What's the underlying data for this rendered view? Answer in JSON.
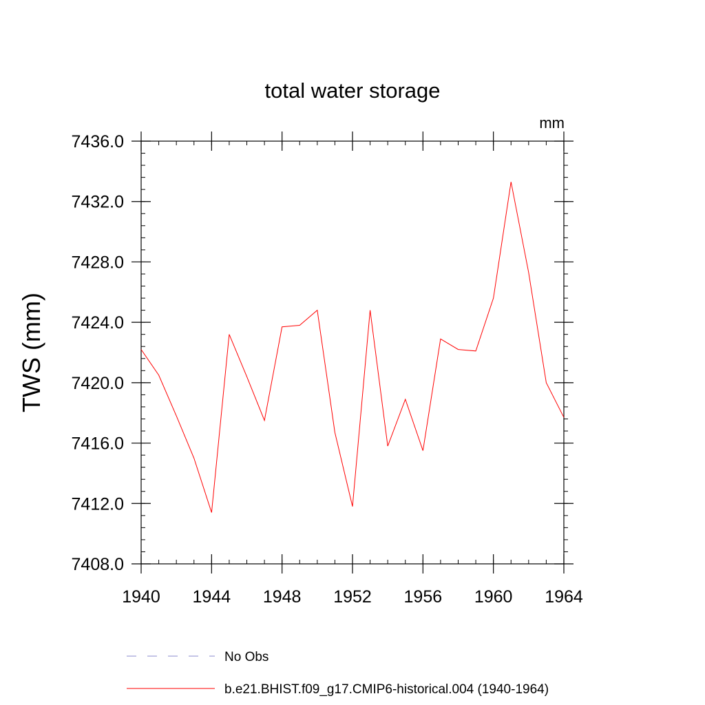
{
  "chart_data": {
    "type": "line",
    "title": "total water storage",
    "units_label": "mm",
    "xlabel": "",
    "ylabel": "TWS  (mm)",
    "xlim": [
      1940,
      1964
    ],
    "ylim": [
      7408.0,
      7436.0
    ],
    "xticks": [
      "1940",
      "1944",
      "1948",
      "1952",
      "1956",
      "1960",
      "1964"
    ],
    "yticks": [
      "7408.0",
      "7412.0",
      "7416.0",
      "7420.0",
      "7424.0",
      "7428.0",
      "7432.0",
      "7436.0"
    ],
    "series": [
      {
        "name": "b.e21.BHIST.f09_g17.CMIP6-historical.004 (1940-1964)",
        "color": "#ff0000",
        "x": [
          1940,
          1941,
          1942,
          1943,
          1944,
          1945,
          1946,
          1947,
          1948,
          1949,
          1950,
          1951,
          1952,
          1953,
          1954,
          1955,
          1956,
          1957,
          1958,
          1959,
          1960,
          1961,
          1962,
          1963,
          1964
        ],
        "values": [
          7422.2,
          7420.5,
          7417.8,
          7415.0,
          7411.4,
          7423.2,
          7420.4,
          7417.5,
          7423.7,
          7423.8,
          7424.8,
          7416.7,
          7411.8,
          7424.8,
          7415.8,
          7418.9,
          7415.5,
          7422.9,
          7422.2,
          7422.1,
          7425.6,
          7433.3,
          7427.3,
          7420.0,
          7417.7
        ]
      }
    ],
    "legend": [
      {
        "label": "No Obs",
        "color": "#8888cc",
        "style": "dashed"
      },
      {
        "label": "b.e21.BHIST.f09_g17.CMIP6-historical.004 (1940-1964)",
        "color": "#ff0000",
        "style": "solid"
      }
    ],
    "legend_placement": "bottom"
  }
}
